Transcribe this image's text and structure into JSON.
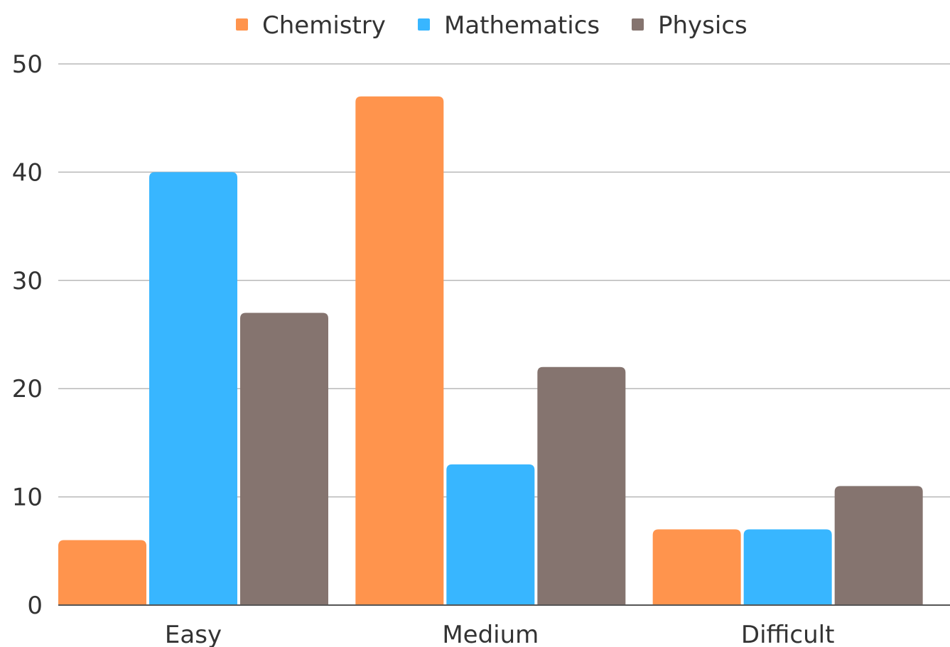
{
  "chart_data": {
    "type": "bar",
    "title": "",
    "xlabel": "",
    "ylabel": "",
    "categories": [
      "Easy",
      "Medium",
      "Difficult"
    ],
    "series": [
      {
        "name": "Chemistry",
        "color": "#FF944D",
        "values": [
          6,
          47,
          7
        ]
      },
      {
        "name": "Mathematics",
        "color": "#38B6FF",
        "values": [
          40,
          13,
          7
        ]
      },
      {
        "name": "Physics",
        "color": "#85746F",
        "values": [
          27,
          22,
          11
        ]
      }
    ],
    "ylim": [
      0,
      50
    ],
    "yticks": [
      "0",
      "10",
      "20",
      "30",
      "40",
      "50"
    ],
    "grid": true,
    "legend_position": "top-center"
  }
}
